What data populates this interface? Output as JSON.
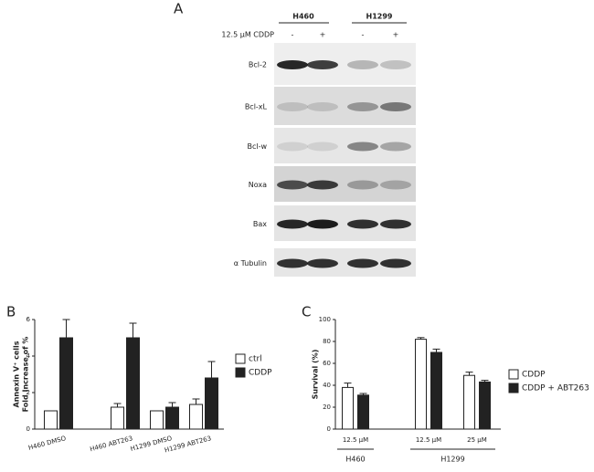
{
  "blot": {
    "panel": "A",
    "cell_lines": [
      "H460",
      "H1299"
    ],
    "treatment": "12.5 µM CDDP",
    "signs": [
      "-",
      "+",
      "-",
      "+"
    ],
    "rows": [
      "Bcl-2",
      "Bcl-xL",
      "Bcl-w",
      "Noxa",
      "Bax",
      "α Tubulin"
    ]
  },
  "chart_data": [
    {
      "type": "bar",
      "panel": "B",
      "ylabel": [
        "Annexin V⁺ cells",
        "Fold Increase of %"
      ],
      "categories": [
        "H460 DMSO",
        "H460 ABT263",
        "H1299 DMSO",
        "H1299 ABT263"
      ],
      "series": [
        {
          "name": "ctrl",
          "color": "#ffffff",
          "values": [
            1,
            1.2,
            1,
            1.35
          ],
          "errors": [
            0,
            0.2,
            0,
            0.3
          ]
        },
        {
          "name": "CDDP",
          "color": "#222222",
          "values": [
            5,
            5,
            1.2,
            2.8
          ],
          "errors": [
            1,
            0.8,
            0.25,
            0.9
          ]
        }
      ],
      "ylim": [
        0,
        6
      ],
      "yticks": [
        0,
        2,
        4,
        6
      ],
      "legend": "right"
    },
    {
      "type": "bar",
      "panel": "C",
      "ylabel": [
        "Survival (%)"
      ],
      "categories": [
        "12.5 µM",
        "12.5 µM",
        "25 µM"
      ],
      "groups": [
        "H460",
        "H1299"
      ],
      "series": [
        {
          "name": "CDDP",
          "color": "#ffffff",
          "values": [
            38,
            82,
            49
          ],
          "errors": [
            4,
            1.5,
            3
          ]
        },
        {
          "name": "CDDP + ABT263",
          "color": "#222222",
          "values": [
            31,
            70,
            43
          ],
          "errors": [
            1.5,
            3,
            1.5
          ]
        }
      ],
      "ylim": [
        0,
        100
      ],
      "yticks": [
        0,
        20,
        40,
        60,
        80,
        100
      ],
      "legend": "right"
    }
  ]
}
